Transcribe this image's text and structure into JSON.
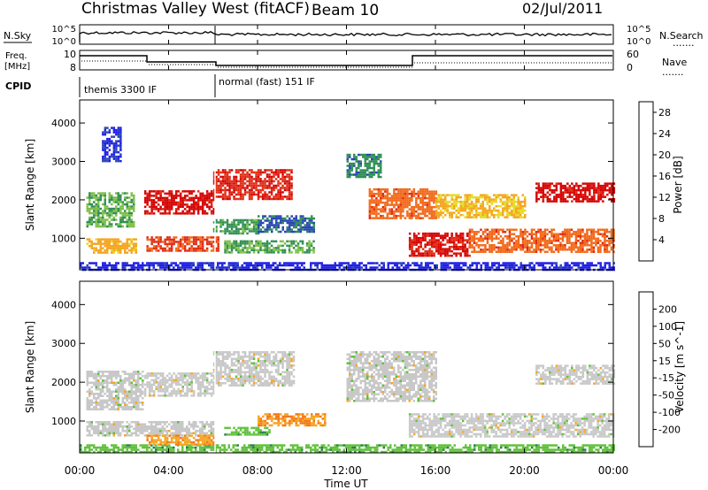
{
  "header": {
    "title": "Christmas Valley West (fitACF)",
    "beam": "Beam 10",
    "date": "02/Jul/2011"
  },
  "strip_labels": {
    "nsky": "N.Sky",
    "nsearch": "N.Search",
    "freq": "Freq.",
    "freq_unit": "[MHz]",
    "nave": "Nave",
    "cpid": "CPID",
    "dots": "......."
  },
  "strip_ticks": {
    "noise_top": "10^5",
    "noise_bottom": "10^0",
    "freq_left_top": "10",
    "freq_left_bottom": "8",
    "nave_right_top": "60",
    "nave_right_bottom": "0"
  },
  "cpid_segments": [
    {
      "label": "themis 3300 IF",
      "start_hour": 0,
      "end_hour": 6
    },
    {
      "label": "normal (fast) 151 IF",
      "start_hour": 6,
      "end_hour": 24
    }
  ],
  "colors": {
    "power": [
      "#1e1ee6",
      "#2a46b4",
      "#2f8f54",
      "#7fbf4a",
      "#e6dc28",
      "#f5a623",
      "#f26a1b",
      "#e02b14",
      "#d40000"
    ],
    "velocity": [
      "#1a1ab8",
      "#2d5fb0",
      "#2e7d4f",
      "#5fc23a",
      "#c8c8c8",
      "#f5a623",
      "#f27a1b",
      "#e63a14",
      "#e00000"
    ]
  },
  "chart_data": [
    {
      "type": "heatmap",
      "title": "Power",
      "xlabel": "",
      "ylabel": "Slant Range [km]",
      "xlim": [
        0,
        24
      ],
      "ylim": [
        180,
        4600
      ],
      "y_ticks": [
        "1000",
        "2000",
        "3000",
        "4000"
      ],
      "colorbar": {
        "label": "Power [dB]",
        "ticks": [
          "4",
          "8",
          "12",
          "16",
          "20",
          "24",
          "28"
        ],
        "range": [
          0,
          30
        ]
      },
      "patches": [
        {
          "x": [
            0.0,
            24.0
          ],
          "y": [
            200,
            380
          ],
          "v": 2
        },
        {
          "x": [
            0.3,
            2.4
          ],
          "y": [
            1300,
            2200
          ],
          "v": 10
        },
        {
          "x": [
            1.0,
            1.8
          ],
          "y": [
            3000,
            3900
          ],
          "v": 3
        },
        {
          "x": [
            0.3,
            2.5
          ],
          "y": [
            650,
            1000
          ],
          "v": 18
        },
        {
          "x": [
            2.9,
            6.0
          ],
          "y": [
            1650,
            2250
          ],
          "v": 28
        },
        {
          "x": [
            3.0,
            6.2
          ],
          "y": [
            700,
            1050
          ],
          "v": 24
        },
        {
          "x": [
            6.0,
            9.5
          ],
          "y": [
            2000,
            2800
          ],
          "v": 26
        },
        {
          "x": [
            6.0,
            8.0
          ],
          "y": [
            1150,
            1500
          ],
          "v": 9
        },
        {
          "x": [
            8.0,
            10.5
          ],
          "y": [
            1150,
            1600
          ],
          "v": 6
        },
        {
          "x": [
            6.5,
            10.5
          ],
          "y": [
            650,
            950
          ],
          "v": 10
        },
        {
          "x": [
            12.0,
            13.5
          ],
          "y": [
            2600,
            3200
          ],
          "v": 8
        },
        {
          "x": [
            13.0,
            16.0
          ],
          "y": [
            1500,
            2300
          ],
          "v": 22
        },
        {
          "x": [
            14.8,
            17.5
          ],
          "y": [
            550,
            1150
          ],
          "v": 27
        },
        {
          "x": [
            17.5,
            24.0
          ],
          "y": [
            650,
            1250
          ],
          "v": 22
        },
        {
          "x": [
            20.5,
            24.0
          ],
          "y": [
            1950,
            2450
          ],
          "v": 28
        },
        {
          "x": [
            16.0,
            20.0
          ],
          "y": [
            1550,
            2150
          ],
          "v": 17
        }
      ]
    },
    {
      "type": "heatmap",
      "title": "Velocity",
      "xlabel": "Time UT",
      "ylabel": "Slant Range [km]",
      "xlim": [
        0,
        24
      ],
      "ylim": [
        180,
        4600
      ],
      "x_ticks": [
        "00:00",
        "04:00",
        "08:00",
        "12:00",
        "16:00",
        "20:00",
        "00:00"
      ],
      "y_ticks": [
        "1000",
        "2000",
        "3000",
        "4000"
      ],
      "colorbar": {
        "label": "Velocity [m s^-1]",
        "ticks": [
          "200",
          "100",
          "50",
          "15",
          "-15",
          "-50",
          "-100",
          "-200"
        ],
        "range": [
          -250,
          250
        ]
      },
      "patches": [
        {
          "x": [
            0.0,
            24.0
          ],
          "y": [
            200,
            400
          ],
          "v": 60
        },
        {
          "x": [
            0.3,
            2.8
          ],
          "y": [
            1300,
            2300
          ],
          "v": 0
        },
        {
          "x": [
            2.9,
            6.0
          ],
          "y": [
            1650,
            2250
          ],
          "v": 0
        },
        {
          "x": [
            6.0,
            9.6
          ],
          "y": [
            1900,
            2800
          ],
          "v": 0
        },
        {
          "x": [
            0.3,
            6.0
          ],
          "y": [
            650,
            1000
          ],
          "v": 0
        },
        {
          "x": [
            3.0,
            6.0
          ],
          "y": [
            400,
            650
          ],
          "v": -70
        },
        {
          "x": [
            8.0,
            11.0
          ],
          "y": [
            900,
            1200
          ],
          "v": -80
        },
        {
          "x": [
            6.5,
            8.5
          ],
          "y": [
            650,
            850
          ],
          "v": 60
        },
        {
          "x": [
            12.0,
            16.0
          ],
          "y": [
            1500,
            2800
          ],
          "v": 0
        },
        {
          "x": [
            14.8,
            24.0
          ],
          "y": [
            600,
            1200
          ],
          "v": 0
        },
        {
          "x": [
            20.5,
            24.0
          ],
          "y": [
            1950,
            2450
          ],
          "v": 0
        }
      ]
    }
  ]
}
